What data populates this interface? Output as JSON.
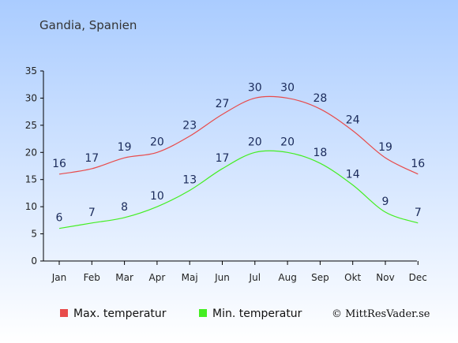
{
  "chart_data": {
    "type": "line",
    "title": "Gandia, Spanien",
    "categories": [
      "Jan",
      "Feb",
      "Mar",
      "Apr",
      "Maj",
      "Jun",
      "Jul",
      "Aug",
      "Sep",
      "Okt",
      "Nov",
      "Dec"
    ],
    "yticks": [
      "0",
      "5",
      "10",
      "15",
      "20",
      "25",
      "30",
      "35"
    ],
    "ylim": [
      0,
      35
    ],
    "series": [
      {
        "name": "Max. temperatur",
        "color": "#e84b4b",
        "values": [
          16,
          17,
          19,
          20,
          23,
          27,
          30,
          30,
          28,
          24,
          19,
          16
        ]
      },
      {
        "name": "Min. temperatur",
        "color": "#44ee22",
        "values": [
          6,
          7,
          8,
          10,
          13,
          17,
          20,
          20,
          18,
          14,
          9,
          7
        ]
      }
    ],
    "legend_position": "bottom",
    "background_gradient": [
      "#aaccff",
      "#ffffff"
    ]
  },
  "copyright": "© MittResVader.se"
}
